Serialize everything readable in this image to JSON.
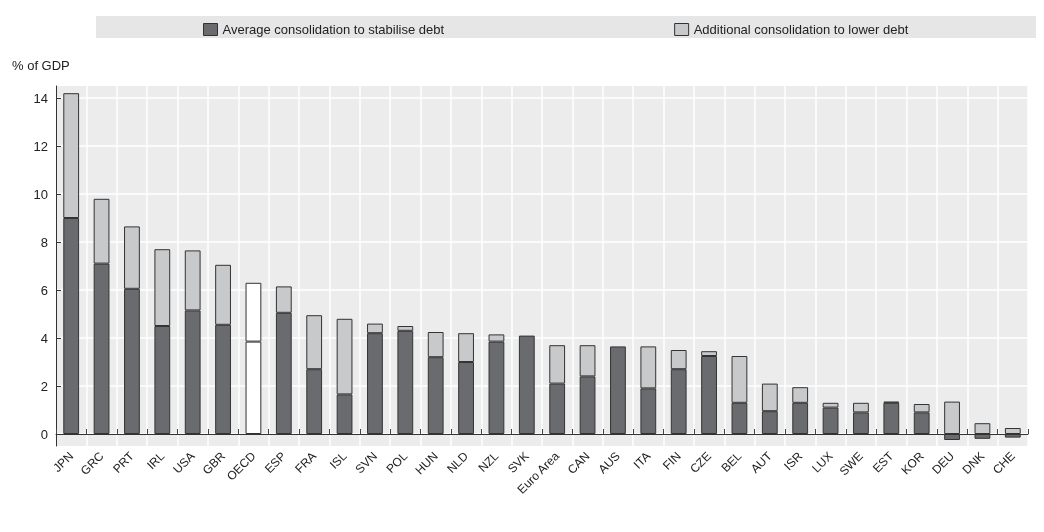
{
  "chart_data": {
    "type": "bar",
    "stacked": true,
    "ylabel": "% of GDP",
    "categories": [
      "JPN",
      "GRC",
      "PRT",
      "IRL",
      "USA",
      "GBR",
      "OECD",
      "ESP",
      "FRA",
      "ISL",
      "SVN",
      "POL",
      "HUN",
      "NLD",
      "NZL",
      "SVK",
      "Euro Area",
      "CAN",
      "AUS",
      "ITA",
      "FIN",
      "CZE",
      "BEL",
      "AUT",
      "ISR",
      "LUX",
      "SWE",
      "EST",
      "KOR",
      "DEU",
      "DNK",
      "CHE"
    ],
    "series": [
      {
        "name": "Average consolidation to stabilise debt",
        "color": "#6a6b6f",
        "colors": [
          "#6a6b6f",
          "#6a6b6f",
          "#6a6b6f",
          "#6a6b6f",
          "#6a6b6f",
          "#6a6b6f",
          "#ffffff",
          "#6a6b6f",
          "#6a6b6f",
          "#6a6b6f",
          "#6a6b6f",
          "#6a6b6f",
          "#6a6b6f",
          "#6a6b6f",
          "#6a6b6f",
          "#6a6b6f",
          "#6a6b6f",
          "#6a6b6f",
          "#6a6b6f",
          "#6a6b6f",
          "#6a6b6f",
          "#6a6b6f",
          "#6a6b6f",
          "#6a6b6f",
          "#6a6b6f",
          "#6a6b6f",
          "#6a6b6f",
          "#6a6b6f",
          "#6a6b6f",
          "#6a6b6f",
          "#6a6b6f",
          "#6a6b6f"
        ],
        "values": [
          9.0,
          7.1,
          6.05,
          4.5,
          5.15,
          4.55,
          3.85,
          5.05,
          2.7,
          1.65,
          4.2,
          4.3,
          3.2,
          3.0,
          3.85,
          4.1,
          2.1,
          2.4,
          3.65,
          1.9,
          2.7,
          3.25,
          1.3,
          0.95,
          1.3,
          1.1,
          0.9,
          1.3,
          0.9,
          -0.25,
          -0.2,
          -0.15
        ]
      },
      {
        "name": "Additional consolidation to lower debt",
        "color": "#c8c9cb",
        "colors": [
          "#c8c9cb",
          "#c8c9cb",
          "#c8c9cb",
          "#c8c9cb",
          "#c8c9cb",
          "#c8c9cb",
          "#ffffff",
          "#c8c9cb",
          "#c8c9cb",
          "#c8c9cb",
          "#c8c9cb",
          "#c8c9cb",
          "#c8c9cb",
          "#c8c9cb",
          "#c8c9cb",
          "#c8c9cb",
          "#c8c9cb",
          "#c8c9cb",
          "#c8c9cb",
          "#c8c9cb",
          "#c8c9cb",
          "#c8c9cb",
          "#c8c9cb",
          "#c8c9cb",
          "#c8c9cb",
          "#c8c9cb",
          "#c8c9cb",
          "#c8c9cb",
          "#c8c9cb",
          "#c8c9cb",
          "#c8c9cb",
          "#c8c9cb"
        ],
        "values": [
          5.2,
          2.7,
          2.6,
          3.2,
          2.5,
          2.5,
          2.45,
          1.1,
          2.25,
          3.15,
          0.4,
          0.2,
          1.05,
          1.2,
          0.3,
          null,
          1.6,
          1.3,
          null,
          1.75,
          0.8,
          0.2,
          1.95,
          1.15,
          0.65,
          0.2,
          0.4,
          0.05,
          0.35,
          1.35,
          0.45,
          0.25
        ]
      }
    ],
    "ylim": [
      -0.5,
      14.5
    ],
    "yticks": [
      0,
      2,
      4,
      6,
      8,
      10,
      12,
      14
    ],
    "grid": true,
    "legend": "top"
  }
}
